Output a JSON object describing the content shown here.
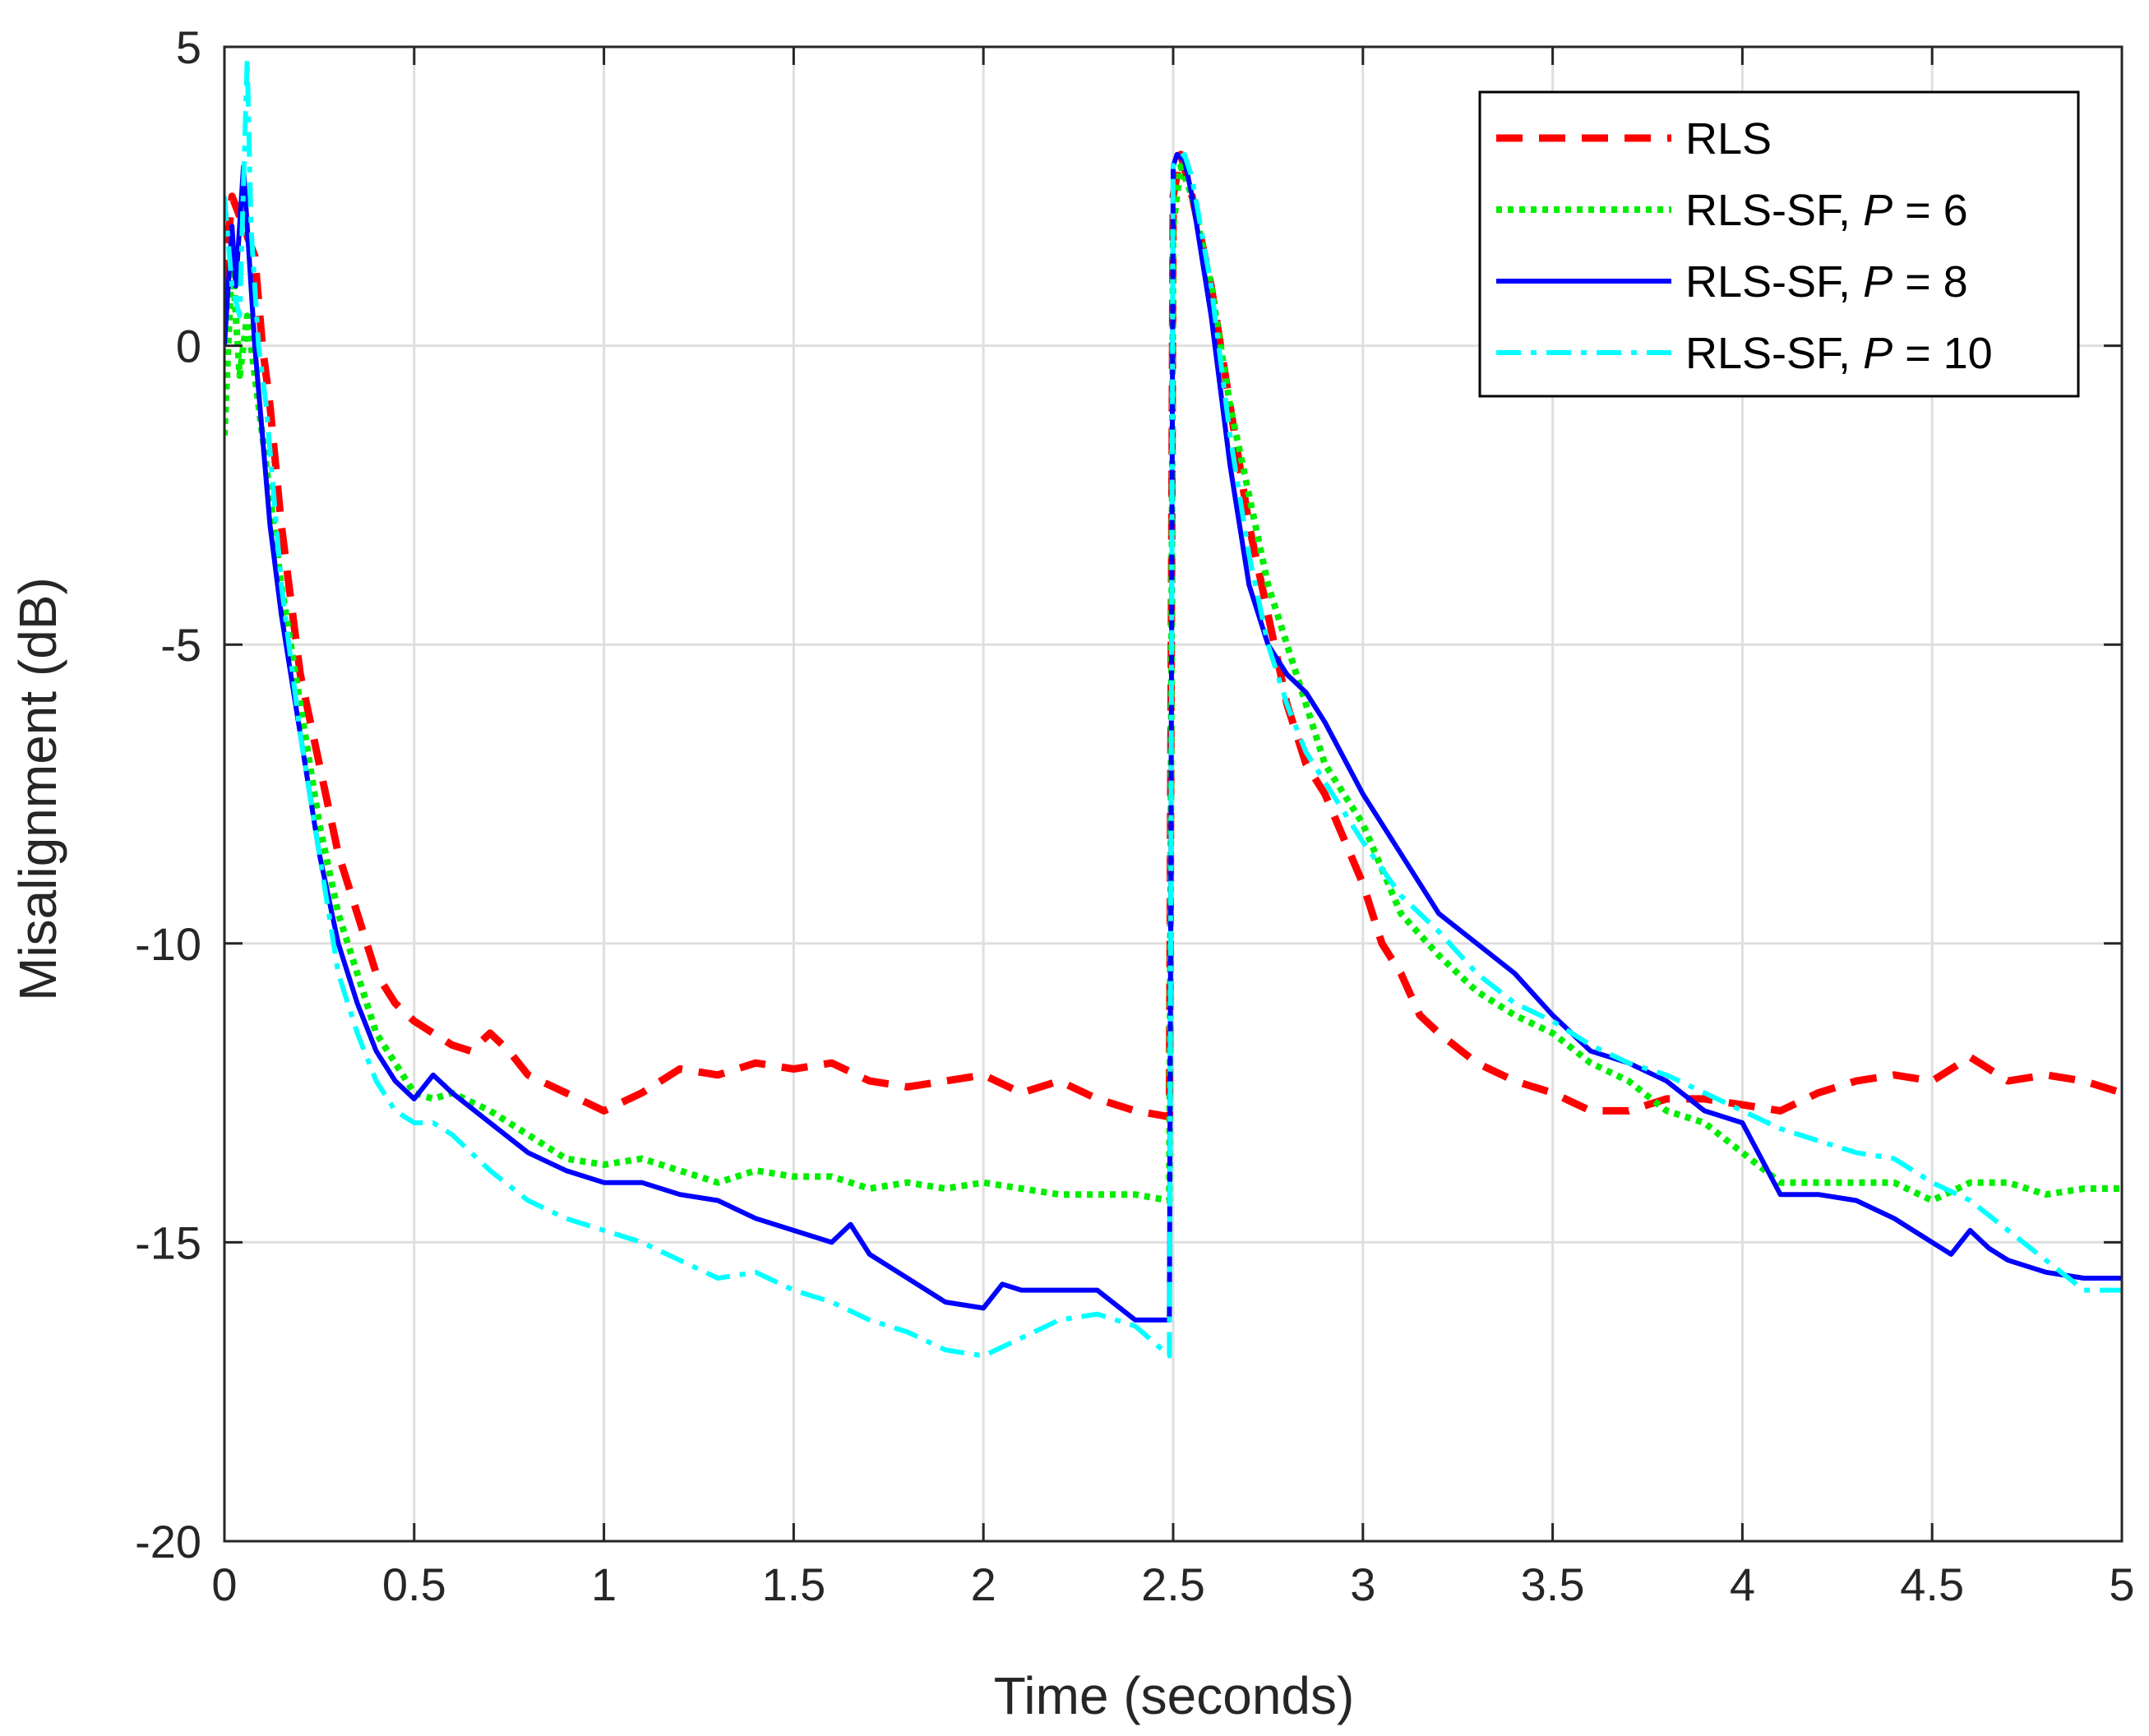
{
  "chart_data": {
    "type": "line",
    "title": "",
    "xlabel": "Time (seconds)",
    "ylabel": "Misalignment (dB)",
    "xlim": [
      0,
      5
    ],
    "ylim": [
      -20,
      5
    ],
    "grid": true,
    "legend_position": "top-right",
    "x_ticks": [
      0,
      0.5,
      1,
      1.5,
      2,
      2.5,
      3,
      3.5,
      4,
      4.5,
      5
    ],
    "x_tick_labels": [
      "0",
      "0.5",
      "1",
      "1.5",
      "2",
      "2.5",
      "3",
      "3.5",
      "4",
      "4.5",
      "5"
    ],
    "y_ticks": [
      5,
      0,
      -5,
      -10,
      -15,
      -20
    ],
    "y_tick_labels": [
      "5",
      "0",
      "-5",
      "-10",
      "-15",
      "-20"
    ],
    "series": [
      {
        "name": "RLS",
        "legend_label": "RLS",
        "legend_italic": "",
        "legend_suffix": "",
        "color": "#ff0000",
        "style": "dashed",
        "x": [
          0,
          0.02,
          0.05,
          0.08,
          0.1,
          0.12,
          0.15,
          0.2,
          0.25,
          0.3,
          0.35,
          0.4,
          0.45,
          0.5,
          0.55,
          0.6,
          0.65,
          0.7,
          0.75,
          0.8,
          0.9,
          1.0,
          1.1,
          1.2,
          1.3,
          1.4,
          1.5,
          1.6,
          1.7,
          1.8,
          1.9,
          2.0,
          2.1,
          2.2,
          2.3,
          2.4,
          2.49,
          2.5,
          2.52,
          2.55,
          2.6,
          2.65,
          2.7,
          2.75,
          2.8,
          2.85,
          2.9,
          3.0,
          3.05,
          3.1,
          3.15,
          3.2,
          3.3,
          3.4,
          3.5,
          3.6,
          3.7,
          3.8,
          3.9,
          4.0,
          4.1,
          4.2,
          4.3,
          4.4,
          4.5,
          4.6,
          4.7,
          4.8,
          4.9,
          5.0
        ],
        "y": [
          1.0,
          2.5,
          2.0,
          1.5,
          0.0,
          -1.0,
          -3.0,
          -5.5,
          -7.0,
          -8.5,
          -9.5,
          -10.5,
          -11.0,
          -11.3,
          -11.5,
          -11.7,
          -11.8,
          -11.5,
          -11.8,
          -12.2,
          -12.5,
          -12.8,
          -12.5,
          -12.1,
          -12.2,
          -12.0,
          -12.1,
          -12.0,
          -12.3,
          -12.4,
          -12.3,
          -12.2,
          -12.5,
          -12.3,
          -12.6,
          -12.8,
          -12.9,
          2.5,
          3.2,
          2.5,
          1.0,
          -1.0,
          -3.0,
          -4.5,
          -6.0,
          -7.0,
          -7.5,
          -9.0,
          -10.0,
          -10.5,
          -11.2,
          -11.5,
          -12.0,
          -12.3,
          -12.5,
          -12.8,
          -12.8,
          -12.6,
          -12.6,
          -12.7,
          -12.8,
          -12.5,
          -12.3,
          -12.2,
          -12.3,
          -11.9,
          -12.3,
          -12.2,
          -12.3,
          -12.5
        ]
      },
      {
        "name": "RLS-SF, P = 6",
        "legend_label": "RLS-SF, ",
        "legend_italic": "P",
        "legend_suffix": " = 6",
        "color": "#00ee00",
        "style": "dotted",
        "x": [
          0,
          0.02,
          0.04,
          0.06,
          0.08,
          0.1,
          0.12,
          0.15,
          0.2,
          0.25,
          0.3,
          0.35,
          0.4,
          0.45,
          0.5,
          0.55,
          0.6,
          0.7,
          0.8,
          0.9,
          1.0,
          1.1,
          1.2,
          1.3,
          1.4,
          1.5,
          1.6,
          1.7,
          1.8,
          1.9,
          2.0,
          2.1,
          2.2,
          2.3,
          2.4,
          2.49,
          2.5,
          2.52,
          2.55,
          2.6,
          2.65,
          2.7,
          2.75,
          2.8,
          2.85,
          2.9,
          3.0,
          3.1,
          3.2,
          3.3,
          3.4,
          3.5,
          3.6,
          3.7,
          3.8,
          3.9,
          4.0,
          4.1,
          4.2,
          4.3,
          4.4,
          4.5,
          4.6,
          4.7,
          4.8,
          4.9,
          5.0
        ],
        "y": [
          -1.5,
          1.5,
          -0.5,
          0.5,
          -0.5,
          -1.5,
          -2.5,
          -4.0,
          -6.0,
          -8.0,
          -9.5,
          -10.5,
          -11.5,
          -12.0,
          -12.5,
          -12.6,
          -12.5,
          -12.8,
          -13.2,
          -13.6,
          -13.7,
          -13.6,
          -13.8,
          -14.0,
          -13.8,
          -13.9,
          -13.9,
          -14.1,
          -14.0,
          -14.1,
          -14.0,
          -14.1,
          -14.2,
          -14.2,
          -14.2,
          -14.3,
          2.0,
          3.0,
          2.5,
          1.0,
          -1.0,
          -2.5,
          -4.0,
          -5.0,
          -6.0,
          -7.0,
          -8.0,
          -9.5,
          -10.2,
          -10.8,
          -11.2,
          -11.5,
          -12.0,
          -12.3,
          -12.8,
          -13.0,
          -13.5,
          -14.0,
          -14.0,
          -14.0,
          -14.0,
          -14.3,
          -14.0,
          -14.0,
          -14.2,
          -14.1,
          -14.1
        ]
      },
      {
        "name": "RLS-SF, P = 8",
        "legend_label": "RLS-SF, ",
        "legend_italic": "P",
        "legend_suffix": " = 8",
        "color": "#0000ff",
        "style": "solid",
        "x": [
          0,
          0.02,
          0.03,
          0.05,
          0.06,
          0.08,
          0.1,
          0.12,
          0.15,
          0.2,
          0.25,
          0.3,
          0.35,
          0.4,
          0.45,
          0.5,
          0.55,
          0.6,
          0.7,
          0.8,
          0.9,
          1.0,
          1.1,
          1.2,
          1.3,
          1.4,
          1.5,
          1.6,
          1.65,
          1.7,
          1.8,
          1.9,
          2.0,
          2.05,
          2.1,
          2.2,
          2.3,
          2.4,
          2.49,
          2.5,
          2.51,
          2.53,
          2.55,
          2.6,
          2.65,
          2.7,
          2.75,
          2.8,
          2.85,
          2.9,
          3.0,
          3.1,
          3.2,
          3.3,
          3.4,
          3.5,
          3.6,
          3.7,
          3.8,
          3.9,
          4.0,
          4.1,
          4.2,
          4.3,
          4.4,
          4.5,
          4.55,
          4.6,
          4.65,
          4.7,
          4.8,
          4.9,
          5.0
        ],
        "y": [
          0.0,
          2.0,
          1.0,
          3.0,
          2.0,
          0.0,
          -1.5,
          -3.0,
          -4.5,
          -6.5,
          -8.5,
          -10.0,
          -11.0,
          -11.8,
          -12.3,
          -12.6,
          -12.2,
          -12.5,
          -13.0,
          -13.5,
          -13.8,
          -14.0,
          -14.0,
          -14.2,
          -14.3,
          -14.6,
          -14.8,
          -15.0,
          -14.7,
          -15.2,
          -15.6,
          -16.0,
          -16.1,
          -15.7,
          -15.8,
          -15.8,
          -15.8,
          -16.3,
          -16.3,
          3.0,
          3.2,
          3.1,
          2.5,
          0.5,
          -2.0,
          -4.0,
          -5.0,
          -5.5,
          -5.8,
          -6.3,
          -7.5,
          -8.5,
          -9.5,
          -10.0,
          -10.5,
          -11.2,
          -11.8,
          -12.0,
          -12.3,
          -12.8,
          -13.0,
          -14.2,
          -14.2,
          -14.3,
          -14.6,
          -15.0,
          -15.2,
          -14.8,
          -15.1,
          -15.3,
          -15.5,
          -15.6,
          -15.6
        ]
      },
      {
        "name": "RLS-SF, P = 10",
        "legend_label": "RLS-SF, ",
        "legend_italic": "P",
        "legend_suffix": " = 10",
        "color": "#00ffff",
        "style": "dashdot",
        "x": [
          0,
          0.02,
          0.04,
          0.06,
          0.07,
          0.09,
          0.11,
          0.13,
          0.15,
          0.2,
          0.25,
          0.3,
          0.35,
          0.4,
          0.45,
          0.5,
          0.55,
          0.6,
          0.7,
          0.8,
          0.9,
          1.0,
          1.1,
          1.2,
          1.3,
          1.4,
          1.5,
          1.6,
          1.7,
          1.8,
          1.9,
          2.0,
          2.1,
          2.2,
          2.3,
          2.4,
          2.49,
          2.5,
          2.51,
          2.53,
          2.55,
          2.6,
          2.65,
          2.7,
          2.75,
          2.8,
          2.85,
          2.9,
          3.0,
          3.1,
          3.2,
          3.3,
          3.4,
          3.5,
          3.6,
          3.7,
          3.8,
          3.9,
          4.0,
          4.1,
          4.2,
          4.3,
          4.4,
          4.5,
          4.6,
          4.7,
          4.8,
          4.9,
          5.0
        ],
        "y": [
          2.5,
          1.0,
          0.5,
          4.8,
          2.0,
          0.0,
          -1.0,
          -2.5,
          -4.0,
          -6.5,
          -8.5,
          -10.5,
          -11.5,
          -12.3,
          -12.8,
          -13.0,
          -13.0,
          -13.2,
          -13.8,
          -14.3,
          -14.6,
          -14.8,
          -15.0,
          -15.3,
          -15.6,
          -15.5,
          -15.8,
          -16.0,
          -16.3,
          -16.5,
          -16.8,
          -16.9,
          -16.6,
          -16.3,
          -16.2,
          -16.4,
          -16.9,
          3.0,
          3.1,
          3.2,
          2.8,
          1.0,
          -1.5,
          -3.5,
          -5.0,
          -6.0,
          -6.8,
          -7.3,
          -8.3,
          -9.2,
          -9.8,
          -10.5,
          -11.0,
          -11.3,
          -11.7,
          -12.0,
          -12.2,
          -12.5,
          -12.8,
          -13.1,
          -13.3,
          -13.5,
          -13.6,
          -14.0,
          -14.3,
          -14.8,
          -15.3,
          -15.8,
          -15.8
        ]
      }
    ]
  }
}
